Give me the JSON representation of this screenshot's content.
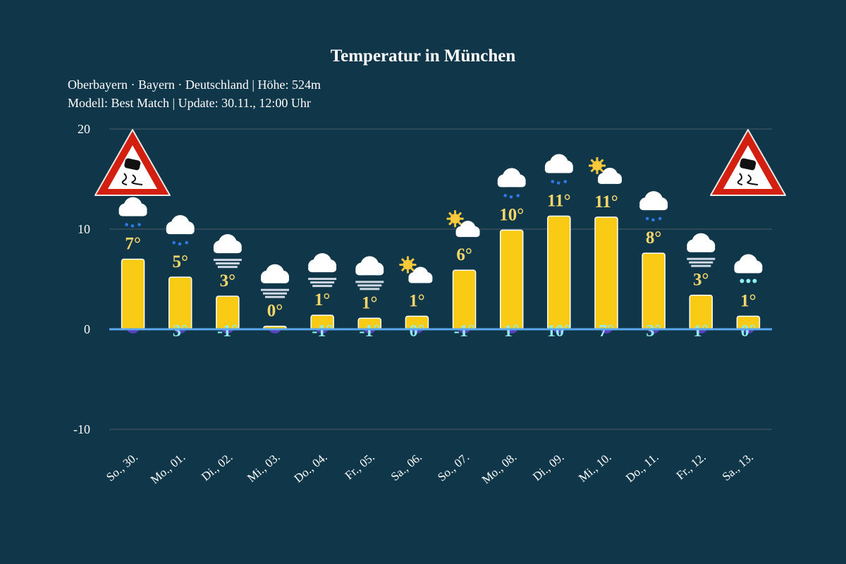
{
  "chart_data": {
    "type": "bar",
    "title": "Temperatur in München",
    "subtitle_line1": "Oberbayern · Bayern · Deutschland | Höhe: 524m",
    "subtitle_line2": "Modell: Best Match | Update: 30.11., 12:00 Uhr",
    "ylim": [
      -10,
      20
    ],
    "yticks": [
      "20",
      "10",
      "0",
      "-10"
    ],
    "grid": true,
    "categories": [
      "So., 30.",
      "Mo., 01.",
      "Di., 02.",
      "Mi., 03.",
      "Do., 04.",
      "Fr., 05.",
      "Sa., 06.",
      "So., 07.",
      "Mo., 08.",
      "Di., 09.",
      "Mi., 10.",
      "Do., 11.",
      "Fr., 12.",
      "Sa., 13."
    ],
    "max_values": [
      7.0,
      5.2,
      3.3,
      0.3,
      1.4,
      1.1,
      1.3,
      5.9,
      9.9,
      11.3,
      11.2,
      7.6,
      3.4,
      1.3
    ],
    "max_labels": [
      "7°",
      "5°",
      "3°",
      "0°",
      "1°",
      "1°",
      "1°",
      "6°",
      "10°",
      "11°",
      "11°",
      "8°",
      "3°",
      "1°"
    ],
    "min_labels": [
      "",
      "3°",
      "-1°",
      "",
      "-1°",
      "-1°",
      "0°",
      "-1°",
      "1°",
      "10°",
      "7°",
      "3°",
      "1°",
      "0°"
    ],
    "weather_icons": [
      "cloud-rain",
      "cloud-rain",
      "cloud-fog",
      "cloud-fog",
      "cloud-fog",
      "cloud-fog",
      "sun-cloud",
      "sun-cloud",
      "cloud-rain",
      "cloud-rain",
      "sun-cloud",
      "cloud-rain",
      "cloud-fog",
      "cloud-snow"
    ],
    "warnings": [
      "slippery-road-warning",
      "slippery-road-warning"
    ],
    "colors": {
      "bar": "#f9cb14",
      "max_label": "#f7d76a",
      "min_label": "#8ef0f0",
      "zero_line": "#5aa8f0",
      "background": "#0f3649"
    }
  }
}
